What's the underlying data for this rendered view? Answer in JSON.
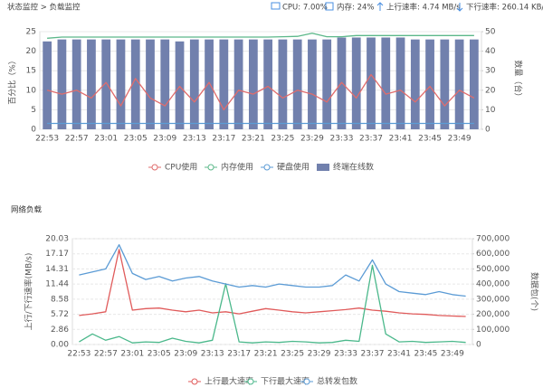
{
  "header": {
    "breadcrumb": "状态监控 > 负载监控",
    "cpu": "CPU: 7.00%",
    "memory": "内存: 24%",
    "upload": "上行速率: 4.74 MB/s",
    "download": "下行速率: 260.14 KB/s"
  },
  "section_title": "网络负载",
  "chart_data": [
    {
      "type": "combo",
      "ylabel": "百分比（%）",
      "y2label": "数量（台）",
      "categories": [
        "22:53",
        null,
        "22:57",
        null,
        "23:01",
        null,
        "23:05",
        null,
        "23:09",
        null,
        "23:13",
        null,
        "23:17",
        null,
        "23:21",
        null,
        "23:25",
        null,
        "23:29",
        null,
        "23:33",
        null,
        "23:37",
        null,
        "23:41",
        null,
        "23:45",
        null,
        "23:49",
        null
      ],
      "ylim": [
        0,
        25
      ],
      "yticks": [
        0,
        5,
        10,
        15,
        20,
        25
      ],
      "y2lim": [
        0,
        50
      ],
      "y2ticks": [
        0,
        10,
        20,
        30,
        40,
        50
      ],
      "grid": true,
      "series": [
        {
          "name": "CPU使用",
          "type": "line",
          "color": "#e06c6c",
          "values": [
            10,
            9,
            10,
            8,
            12,
            6,
            13,
            8,
            6,
            11,
            7,
            12,
            5,
            10,
            9,
            11,
            8,
            10,
            9,
            7,
            12,
            8,
            14,
            9,
            10,
            7,
            11,
            6,
            10,
            8
          ]
        },
        {
          "name": "内存使用",
          "type": "line",
          "color": "#5cb88a",
          "values": [
            23.3,
            23.6,
            23.6,
            23.6,
            23.6,
            23.6,
            23.6,
            23.6,
            23.6,
            23.6,
            23.6,
            23.6,
            23.6,
            23.6,
            23.6,
            23.6,
            23.7,
            23.8,
            24.6,
            23.7,
            23.7,
            24,
            24,
            24,
            24,
            24,
            24,
            24,
            24,
            24
          ]
        },
        {
          "name": "硬盘使用",
          "type": "line",
          "color": "#5b9bd5",
          "values": [
            1.5,
            1.5,
            1.5,
            1.5,
            1.5,
            1.5,
            1.5,
            1.5,
            1.5,
            1.5,
            1.5,
            1.5,
            1.5,
            1.5,
            1.5,
            1.5,
            1.5,
            1.5,
            1.5,
            1.5,
            1.5,
            1.5,
            1.5,
            1.5,
            1.5,
            1.5,
            1.5,
            1.5,
            1.5,
            1.5
          ]
        },
        {
          "name": "终端在线数",
          "type": "bar",
          "axis": "y2",
          "color": "#7180ad",
          "values": [
            45,
            46,
            46,
            46,
            46,
            46,
            46,
            46,
            46,
            45,
            46,
            46,
            46,
            46,
            46,
            46,
            46,
            46,
            46,
            46,
            47,
            47,
            47,
            47,
            47,
            46,
            46,
            46,
            46,
            46
          ]
        }
      ]
    },
    {
      "type": "line",
      "ylabel": "上行/下行速率(MB/s)",
      "y2label": "数据包(个)",
      "categories": [
        "22:53",
        null,
        "22:57",
        null,
        "23:01",
        null,
        "23:05",
        null,
        "23:09",
        null,
        "23:13",
        null,
        "23:17",
        null,
        "23:21",
        null,
        "23:25",
        null,
        "23:29",
        null,
        "23:33",
        null,
        "23:37",
        null,
        "23:41",
        null,
        "23:45",
        null,
        "23:49",
        null
      ],
      "ylim": [
        0,
        20.03
      ],
      "yticks": [
        {
          "value": 0,
          "label": "0.00"
        },
        2.86,
        5.72,
        8.58,
        11.44,
        14.31,
        17.17,
        20.03
      ],
      "y2lim": [
        0,
        700000
      ],
      "y2ticks": [
        0,
        {
          "value": 100000,
          "label": "100,000"
        },
        {
          "value": 200000,
          "label": "200,000"
        },
        {
          "value": 300000,
          "label": "300,000"
        },
        {
          "value": 400000,
          "label": "400,000"
        },
        {
          "value": 500000,
          "label": "500,000"
        },
        {
          "value": 600000,
          "label": "600,000"
        },
        {
          "value": 700000,
          "label": "700,000"
        }
      ],
      "grid": true,
      "series": [
        {
          "name": "上行最大速率",
          "type": "line",
          "color": "#e05a5a",
          "values": [
            5.5,
            5.8,
            6.2,
            18.0,
            6.5,
            6.8,
            6.9,
            6.5,
            6.2,
            6.5,
            6.0,
            6.2,
            5.8,
            6.3,
            6.8,
            6.5,
            6.2,
            6.0,
            6.2,
            6.4,
            6.6,
            6.9,
            6.5,
            6.3,
            6.0,
            5.8,
            5.7,
            5.5,
            5.4,
            5.3
          ]
        },
        {
          "name": "下行最大速率",
          "type": "line",
          "color": "#4bb88b",
          "values": [
            0.5,
            2.0,
            0.8,
            1.5,
            0.3,
            0.5,
            0.4,
            1.2,
            0.6,
            0.3,
            0.8,
            11.5,
            0.5,
            0.3,
            0.5,
            0.4,
            0.6,
            0.5,
            0.3,
            0.4,
            0.8,
            0.6,
            15.0,
            2.0,
            0.5,
            0.6,
            0.4,
            0.5,
            0.6,
            0.4
          ]
        },
        {
          "name": "总转发包数",
          "type": "line",
          "axis": "y2",
          "color": "#5b9bd5",
          "values": [
            460000,
            480000,
            500000,
            660000,
            470000,
            430000,
            450000,
            420000,
            440000,
            450000,
            420000,
            400000,
            380000,
            390000,
            380000,
            400000,
            390000,
            380000,
            380000,
            390000,
            460000,
            420000,
            560000,
            400000,
            350000,
            340000,
            330000,
            350000,
            330000,
            320000
          ]
        }
      ]
    }
  ]
}
